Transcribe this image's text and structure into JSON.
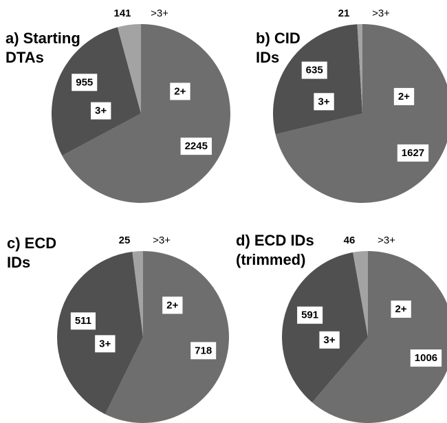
{
  "chart_data": [
    {
      "type": "pie",
      "title": "a) Starting DTAs",
      "categories": [
        "2+",
        "3+",
        ">3+"
      ],
      "values": [
        2245,
        955,
        141
      ],
      "colors": [
        "#6e6e6e",
        "#505050",
        "#a3a3a3"
      ]
    },
    {
      "type": "pie",
      "title": "b) CID IDs",
      "categories": [
        "2+",
        "3+",
        ">3+"
      ],
      "values": [
        1627,
        635,
        21
      ],
      "colors": [
        "#6e6e6e",
        "#505050",
        "#a3a3a3"
      ]
    },
    {
      "type": "pie",
      "title": "c) ECD IDs",
      "categories": [
        "2+",
        "3+",
        ">3+"
      ],
      "values": [
        718,
        511,
        25
      ],
      "colors": [
        "#6e6e6e",
        "#505050",
        "#a3a3a3"
      ]
    },
    {
      "type": "pie",
      "title": "d) ECD IDs (trimmed)",
      "categories": [
        "2+",
        "3+",
        ">3+"
      ],
      "values": [
        1006,
        591,
        46
      ],
      "colors": [
        "#6e6e6e",
        "#505050",
        "#a3a3a3"
      ]
    }
  ]
}
